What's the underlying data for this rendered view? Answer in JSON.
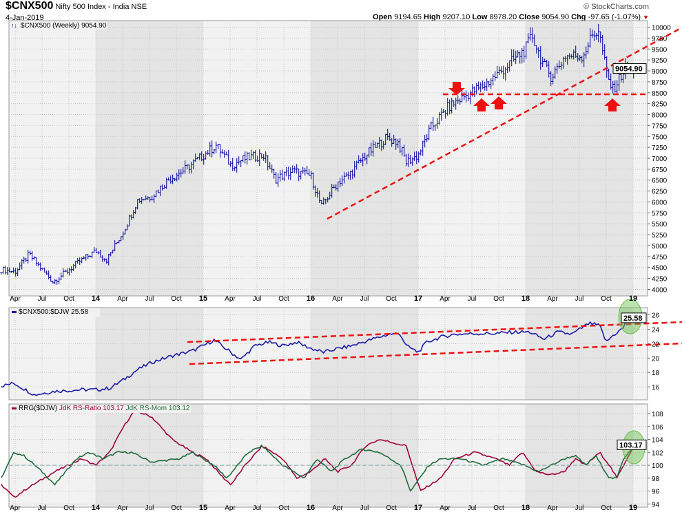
{
  "header": {
    "symbol": "$CNX500",
    "name": "Nifty 500 Index - India",
    "exchange": "NSE",
    "date": "4-Jan-2019",
    "brand": "© StockCharts.com",
    "open_label": "Open",
    "open": "9194.65",
    "high_label": "High",
    "high": "9207.10",
    "low_label": "Low",
    "low": "8978.20",
    "close_label": "Close",
    "close": "9054.90",
    "chg_label": "Chg",
    "chg": "-97.65 (-1.07%)"
  },
  "colors": {
    "price": "#0000a0",
    "rs": "#1a1aa8",
    "ratio": "#a0003c",
    "momentum": "#1f6b3a",
    "annotation": "#ee1111",
    "highlight": "#6abf4b"
  },
  "chart_data": [
    {
      "type": "ohlc",
      "title": "$CNX500 (Weekly) 9054.90",
      "last_value": "9054.90",
      "ylim": [
        3850,
        10150
      ],
      "yticks": [
        4000,
        4250,
        4500,
        4750,
        5000,
        5250,
        5500,
        5750,
        6000,
        6250,
        6500,
        6750,
        7000,
        7250,
        7500,
        7750,
        8000,
        8250,
        8500,
        8750,
        9000,
        9250,
        9500,
        9750,
        10000
      ],
      "x_labels": [
        "Apr",
        "Jul",
        "Oct",
        "14",
        "Apr",
        "Jul",
        "Oct",
        "15",
        "Apr",
        "Jul",
        "Oct",
        "16",
        "Apr",
        "Jul",
        "Oct",
        "17",
        "Apr",
        "Jul",
        "Oct",
        "18",
        "Apr",
        "Jul",
        "Oct",
        "19"
      ],
      "x_start": 2013.25,
      "series": [
        [
          2013.12,
          4450
        ],
        [
          2013.25,
          4400
        ],
        [
          2013.38,
          4800
        ],
        [
          2013.6,
          4170
        ],
        [
          2013.75,
          4450
        ],
        [
          2013.85,
          4640
        ],
        [
          2014.0,
          4880
        ],
        [
          2014.1,
          4670
        ],
        [
          2014.26,
          5340
        ],
        [
          2014.39,
          6050
        ],
        [
          2014.52,
          6130
        ],
        [
          2014.68,
          6520
        ],
        [
          2014.84,
          6760
        ],
        [
          2015.0,
          7070
        ],
        [
          2015.12,
          7300
        ],
        [
          2015.26,
          6840
        ],
        [
          2015.39,
          7000
        ],
        [
          2015.56,
          7070
        ],
        [
          2015.67,
          6520
        ],
        [
          2015.83,
          6710
        ],
        [
          2016.0,
          6600
        ],
        [
          2016.1,
          5900
        ],
        [
          2016.25,
          6450
        ],
        [
          2016.35,
          6600
        ],
        [
          2016.51,
          7070
        ],
        [
          2016.7,
          7460
        ],
        [
          2016.81,
          7380
        ],
        [
          2016.89,
          6910
        ],
        [
          2017.0,
          7070
        ],
        [
          2017.12,
          7700
        ],
        [
          2017.28,
          8170
        ],
        [
          2017.47,
          8480
        ],
        [
          2017.6,
          8640
        ],
        [
          2017.79,
          9030
        ],
        [
          2018.0,
          9500
        ],
        [
          2018.06,
          9810
        ],
        [
          2018.17,
          9110
        ],
        [
          2018.24,
          8870
        ],
        [
          2018.37,
          9340
        ],
        [
          2018.53,
          9340
        ],
        [
          2018.62,
          9810
        ],
        [
          2018.68,
          9940
        ],
        [
          2018.76,
          8870
        ],
        [
          2018.81,
          8560
        ],
        [
          2018.92,
          9030
        ],
        [
          2019.01,
          9055
        ]
      ]
    },
    {
      "type": "line",
      "title": "$CNX500:$DJW 25.58",
      "last_value": "25.58",
      "ylim": [
        14.2,
        27
      ],
      "yticks": [
        16,
        18,
        20,
        22,
        24,
        26
      ],
      "series": [
        [
          2013.12,
          16.1
        ],
        [
          2013.24,
          16.5
        ],
        [
          2013.43,
          14.9
        ],
        [
          2013.62,
          15.4
        ],
        [
          2013.87,
          15.6
        ],
        [
          2014.0,
          15.6
        ],
        [
          2014.13,
          15.8
        ],
        [
          2014.26,
          17.0
        ],
        [
          2014.39,
          18.4
        ],
        [
          2014.52,
          19.4
        ],
        [
          2014.71,
          20.3
        ],
        [
          2014.9,
          21.0
        ],
        [
          2015.0,
          21.7
        ],
        [
          2015.1,
          22.5
        ],
        [
          2015.22,
          21.2
        ],
        [
          2015.35,
          19.8
        ],
        [
          2015.48,
          21.7
        ],
        [
          2015.61,
          22.2
        ],
        [
          2015.74,
          21.7
        ],
        [
          2015.87,
          22.2
        ],
        [
          2015.99,
          21.4
        ],
        [
          2016.12,
          20.8
        ],
        [
          2016.25,
          21.3
        ],
        [
          2016.38,
          21.7
        ],
        [
          2016.57,
          22.6
        ],
        [
          2016.73,
          23.3
        ],
        [
          2016.83,
          23.4
        ],
        [
          2016.89,
          21.7
        ],
        [
          2017.0,
          20.8
        ],
        [
          2017.08,
          22.2
        ],
        [
          2017.21,
          22.9
        ],
        [
          2017.34,
          23.3
        ],
        [
          2017.53,
          23.4
        ],
        [
          2017.72,
          23.4
        ],
        [
          2017.88,
          23.6
        ],
        [
          2018.04,
          23.6
        ],
        [
          2018.17,
          22.6
        ],
        [
          2018.3,
          23.6
        ],
        [
          2018.43,
          23.3
        ],
        [
          2018.59,
          24.8
        ],
        [
          2018.69,
          24.5
        ],
        [
          2018.75,
          22.2
        ],
        [
          2018.81,
          23.1
        ],
        [
          2018.91,
          24.2
        ],
        [
          2018.97,
          26.4
        ],
        [
          2019.01,
          25.58
        ]
      ]
    },
    {
      "type": "line",
      "title": "RRG($DJW)",
      "ylim": [
        93.5,
        109.5
      ],
      "yticks": [
        94,
        96,
        98,
        100,
        102,
        104,
        106,
        108
      ],
      "legend": [
        {
          "name": "JdK RS-Ratio",
          "value": "103.17"
        },
        {
          "name": "JdK RS-Mom",
          "value": "103.12"
        }
      ],
      "last_value": "103.17",
      "ratio": [
        [
          2013.12,
          97
        ],
        [
          2013.24,
          95
        ],
        [
          2013.37,
          96.5
        ],
        [
          2013.62,
          99
        ],
        [
          2013.87,
          101
        ],
        [
          2014.0,
          100
        ],
        [
          2014.13,
          102
        ],
        [
          2014.26,
          106
        ],
        [
          2014.36,
          108.5
        ],
        [
          2014.52,
          107.5
        ],
        [
          2014.71,
          104
        ],
        [
          2014.9,
          102
        ],
        [
          2015.03,
          101
        ],
        [
          2015.19,
          98
        ],
        [
          2015.26,
          97
        ],
        [
          2015.39,
          100
        ],
        [
          2015.55,
          103
        ],
        [
          2015.74,
          101
        ],
        [
          2015.87,
          98
        ],
        [
          2016.0,
          99
        ],
        [
          2016.13,
          101
        ],
        [
          2016.25,
          99
        ],
        [
          2016.38,
          100
        ],
        [
          2016.51,
          103
        ],
        [
          2016.64,
          104
        ],
        [
          2016.89,
          103
        ],
        [
          2017.02,
          96
        ],
        [
          2017.21,
          98
        ],
        [
          2017.34,
          101
        ],
        [
          2017.53,
          102
        ],
        [
          2017.72,
          101
        ],
        [
          2017.85,
          100
        ],
        [
          2017.97,
          102
        ],
        [
          2018.1,
          99
        ],
        [
          2018.23,
          98.5
        ],
        [
          2018.36,
          99
        ],
        [
          2018.46,
          101
        ],
        [
          2018.56,
          100
        ],
        [
          2018.69,
          102
        ],
        [
          2018.78,
          100
        ],
        [
          2018.85,
          98
        ],
        [
          2018.91,
          100
        ],
        [
          2019.01,
          103.17
        ]
      ],
      "momentum": [
        [
          2013.12,
          98
        ],
        [
          2013.24,
          102
        ],
        [
          2013.33,
          101.5
        ],
        [
          2013.5,
          99
        ],
        [
          2013.62,
          97
        ],
        [
          2013.82,
          101
        ],
        [
          2013.94,
          102
        ],
        [
          2014.07,
          101
        ],
        [
          2014.2,
          102
        ],
        [
          2014.33,
          102
        ],
        [
          2014.52,
          100.5
        ],
        [
          2014.78,
          101
        ],
        [
          2014.9,
          102
        ],
        [
          2015.1,
          100
        ],
        [
          2015.22,
          98
        ],
        [
          2015.42,
          102
        ],
        [
          2015.55,
          103
        ],
        [
          2015.74,
          100
        ],
        [
          2015.94,
          98
        ],
        [
          2016.06,
          101
        ],
        [
          2016.19,
          99
        ],
        [
          2016.32,
          101
        ],
        [
          2016.48,
          102.5
        ],
        [
          2016.64,
          102
        ],
        [
          2016.84,
          100
        ],
        [
          2016.93,
          96
        ],
        [
          2017.1,
          100
        ],
        [
          2017.21,
          101
        ],
        [
          2017.4,
          101
        ],
        [
          2017.6,
          100
        ],
        [
          2017.79,
          101
        ],
        [
          2017.99,
          100
        ],
        [
          2018.12,
          99
        ],
        [
          2018.36,
          101
        ],
        [
          2018.46,
          101.5
        ],
        [
          2018.56,
          100
        ],
        [
          2018.65,
          101.5
        ],
        [
          2018.78,
          98
        ],
        [
          2018.85,
          98
        ],
        [
          2018.91,
          101
        ],
        [
          2019.01,
          103.12
        ]
      ]
    }
  ]
}
